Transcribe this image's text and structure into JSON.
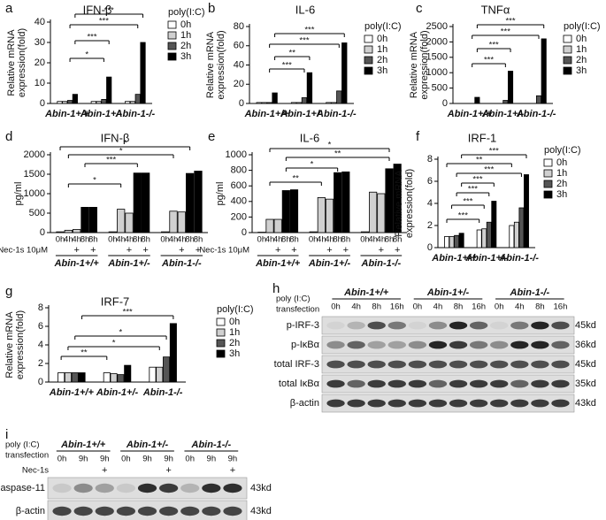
{
  "chart_data": [
    {
      "panel": "a",
      "type": "bar",
      "title": "IFN-β",
      "ylabel": [
        "Relative mRNA",
        "expression(fold)"
      ],
      "categories": [
        "Abin-1+/+",
        "Abin-1+/-",
        "Abin-1-/-"
      ],
      "legend_title": "poly(I:C)",
      "series": [
        {
          "name": "0h",
          "color": "#ffffff",
          "values": [
            1,
            1,
            1
          ]
        },
        {
          "name": "1h",
          "color": "#d0d0d0",
          "values": [
            1,
            1,
            1
          ]
        },
        {
          "name": "2h",
          "color": "#555555",
          "values": [
            1.5,
            2,
            4.5
          ]
        },
        {
          "name": "3h",
          "color": "#000000",
          "values": [
            4.5,
            13,
            30
          ]
        }
      ],
      "ylim": [
        0,
        40
      ],
      "yticks": [
        0,
        10,
        20,
        30,
        40
      ],
      "significance": [
        "***",
        "***",
        "***",
        "*"
      ]
    },
    {
      "panel": "b",
      "type": "bar",
      "title": "IL-6",
      "ylabel": [
        "Relative mRNA",
        "expression(fold)"
      ],
      "categories": [
        "Abin-1+/+",
        "Abin-1+/-",
        "Abin-1-/-"
      ],
      "legend_title": "poly(I:C)",
      "series": [
        {
          "name": "0h",
          "color": "#ffffff",
          "values": [
            1,
            1,
            1
          ]
        },
        {
          "name": "1h",
          "color": "#d0d0d0",
          "values": [
            1,
            1,
            1
          ]
        },
        {
          "name": "2h",
          "color": "#555555",
          "values": [
            1,
            6,
            13
          ]
        },
        {
          "name": "3h",
          "color": "#000000",
          "values": [
            11,
            32,
            63
          ]
        }
      ],
      "ylim": [
        0,
        80
      ],
      "yticks": [
        0,
        20,
        40,
        60,
        80
      ],
      "significance": [
        "***",
        "***",
        "**",
        "***"
      ]
    },
    {
      "panel": "c",
      "type": "bar",
      "title": "TNFα",
      "ylabel": [
        "Relative mRNA",
        "expression(fold)"
      ],
      "categories": [
        "Abin-1+/+",
        "Abin-1+/-",
        "Abin-1-/-"
      ],
      "legend_title": "poly(I:C)",
      "series": [
        {
          "name": "0h",
          "color": "#ffffff",
          "values": [
            1,
            1,
            1
          ]
        },
        {
          "name": "1h",
          "color": "#d0d0d0",
          "values": [
            1,
            1,
            1
          ]
        },
        {
          "name": "2h",
          "color": "#555555",
          "values": [
            1,
            100,
            250
          ]
        },
        {
          "name": "3h",
          "color": "#000000",
          "values": [
            200,
            1050,
            2100
          ]
        }
      ],
      "ylim": [
        0,
        2500
      ],
      "yticks": [
        0,
        500,
        1000,
        1500,
        2000,
        2500
      ],
      "significance": [
        "***",
        "***",
        "***",
        "***"
      ]
    },
    {
      "panel": "d",
      "type": "bar_sequence",
      "title": "IFN-β",
      "ylabel": [
        "pg/ml"
      ],
      "categories": [
        "0h",
        "4h",
        "4h",
        "8h",
        "8h",
        "0h",
        "4h",
        "4h",
        "8h",
        "8h",
        "0h",
        "4h",
        "4h",
        "8h",
        "8h"
      ],
      "treatment_label": "Nec-1s 10μM",
      "treatment": [
        null,
        null,
        "+",
        null,
        "+",
        null,
        null,
        "+",
        null,
        "+",
        null,
        null,
        "+",
        null,
        "+"
      ],
      "groups": [
        "Abin-1+/+",
        "Abin-1+/-",
        "Abin-1-/-"
      ],
      "values": [
        20,
        60,
        80,
        650,
        650,
        20,
        600,
        500,
        1530,
        1530,
        20,
        550,
        530,
        1520,
        1580
      ],
      "colors": [
        "#ffffff",
        "#d0d0d0",
        "#d0d0d0",
        "#000000",
        "#000000",
        "#ffffff",
        "#d0d0d0",
        "#d0d0d0",
        "#000000",
        "#000000",
        "#ffffff",
        "#d0d0d0",
        "#d0d0d0",
        "#000000",
        "#000000"
      ],
      "ylim": [
        0,
        2000
      ],
      "yticks": [
        0,
        500,
        1000,
        1500,
        2000
      ],
      "significance": [
        "*",
        "*",
        "***",
        "*"
      ]
    },
    {
      "panel": "e",
      "type": "bar_sequence",
      "title": "IL-6",
      "ylabel": [
        "pg/ml"
      ],
      "categories": [
        "0h",
        "4h",
        "4h",
        "8h",
        "8h",
        "0h",
        "4h",
        "4h",
        "8h",
        "8h",
        "0h",
        "4h",
        "4h",
        "8h",
        "8h"
      ],
      "treatment_label": "Nec-1s 10μM",
      "treatment": [
        null,
        null,
        "+",
        null,
        "+",
        null,
        null,
        "+",
        null,
        "+",
        null,
        null,
        "+",
        null,
        "+"
      ],
      "groups": [
        "Abin-1+/+",
        "Abin-1+/-",
        "Abin-1-/-"
      ],
      "values": [
        5,
        170,
        170,
        540,
        550,
        10,
        450,
        430,
        770,
        780,
        10,
        520,
        500,
        820,
        880
      ],
      "colors": [
        "#ffffff",
        "#d0d0d0",
        "#d0d0d0",
        "#000000",
        "#000000",
        "#ffffff",
        "#d0d0d0",
        "#d0d0d0",
        "#000000",
        "#000000",
        "#ffffff",
        "#d0d0d0",
        "#d0d0d0",
        "#000000",
        "#000000"
      ],
      "ylim": [
        0,
        1000
      ],
      "yticks": [
        0,
        200,
        400,
        600,
        800,
        1000
      ],
      "significance": [
        "*",
        "**",
        "*",
        "**"
      ]
    },
    {
      "panel": "f",
      "type": "bar",
      "title": "IRF-1",
      "ylabel": [
        "Relative mRNA",
        "expression(fold)"
      ],
      "categories": [
        "Abin-1+/+",
        "Abin-1+/-",
        "Abin-1-/-"
      ],
      "legend_title": "poly(I:C)",
      "series": [
        {
          "name": "0h",
          "color": "#ffffff",
          "values": [
            1,
            1.6,
            2
          ]
        },
        {
          "name": "1h",
          "color": "#d0d0d0",
          "values": [
            1,
            1.7,
            2.3
          ]
        },
        {
          "name": "2h",
          "color": "#555555",
          "values": [
            1.1,
            2.3,
            3.6
          ]
        },
        {
          "name": "3h",
          "color": "#000000",
          "values": [
            1.3,
            4.2,
            6.6
          ]
        }
      ],
      "ylim": [
        0,
        8
      ],
      "yticks": [
        0,
        2,
        4,
        6,
        8
      ],
      "significance": [
        "***",
        "**",
        "***",
        "***",
        "***",
        "***",
        "***"
      ]
    },
    {
      "panel": "g",
      "type": "bar",
      "title": "IRF-7",
      "ylabel": [
        "Relative mRNA",
        "expression(fold)"
      ],
      "categories": [
        "Abin-1+/+",
        "Abin-1+/-",
        "Abin-1-/-"
      ],
      "legend_title": "poly(I:C)",
      "series": [
        {
          "name": "0h",
          "color": "#ffffff",
          "values": [
            1,
            1,
            1.6
          ]
        },
        {
          "name": "1h",
          "color": "#d0d0d0",
          "values": [
            1,
            0.9,
            1.6
          ]
        },
        {
          "name": "2h",
          "color": "#555555",
          "values": [
            1,
            0.8,
            2.7
          ]
        },
        {
          "name": "3h",
          "color": "#000000",
          "values": [
            1,
            1.8,
            6.3
          ]
        }
      ],
      "ylim": [
        0,
        8
      ],
      "yticks": [
        0,
        2,
        4,
        6,
        8
      ],
      "significance": [
        "***",
        "*",
        "*",
        "**"
      ]
    }
  ],
  "blots": [
    {
      "panel": "h",
      "header": [
        "poly (I:C)",
        "transfection"
      ],
      "groups": [
        "Abin-1+/+",
        "Abin-1+/-",
        "Abin-1-/-"
      ],
      "lanes": [
        "0h",
        "4h",
        "8h",
        "16h"
      ],
      "rows": [
        {
          "name": "p-IRF-3",
          "size": "45kd"
        },
        {
          "name": "p-IκBα",
          "size": "36kd"
        },
        {
          "name": "total IRF-3",
          "size": "45kd"
        },
        {
          "name": "total IκBα",
          "size": "35kd"
        },
        {
          "name": "β-actin",
          "size": "43kd"
        }
      ]
    },
    {
      "panel": "i",
      "header": [
        "poly (I:C)",
        "transfection"
      ],
      "groups": [
        "Abin-1+/+",
        "Abin-1+/-",
        "Abin-1-/-"
      ],
      "lanes": [
        "0h",
        "9h",
        "9h"
      ],
      "treatment_label": "Nec-1s",
      "treatment": [
        null,
        null,
        "+"
      ],
      "rows": [
        {
          "name": "Caspase-11",
          "size": "43kd"
        },
        {
          "name": "β-actin",
          "size": "43kd"
        }
      ]
    }
  ]
}
